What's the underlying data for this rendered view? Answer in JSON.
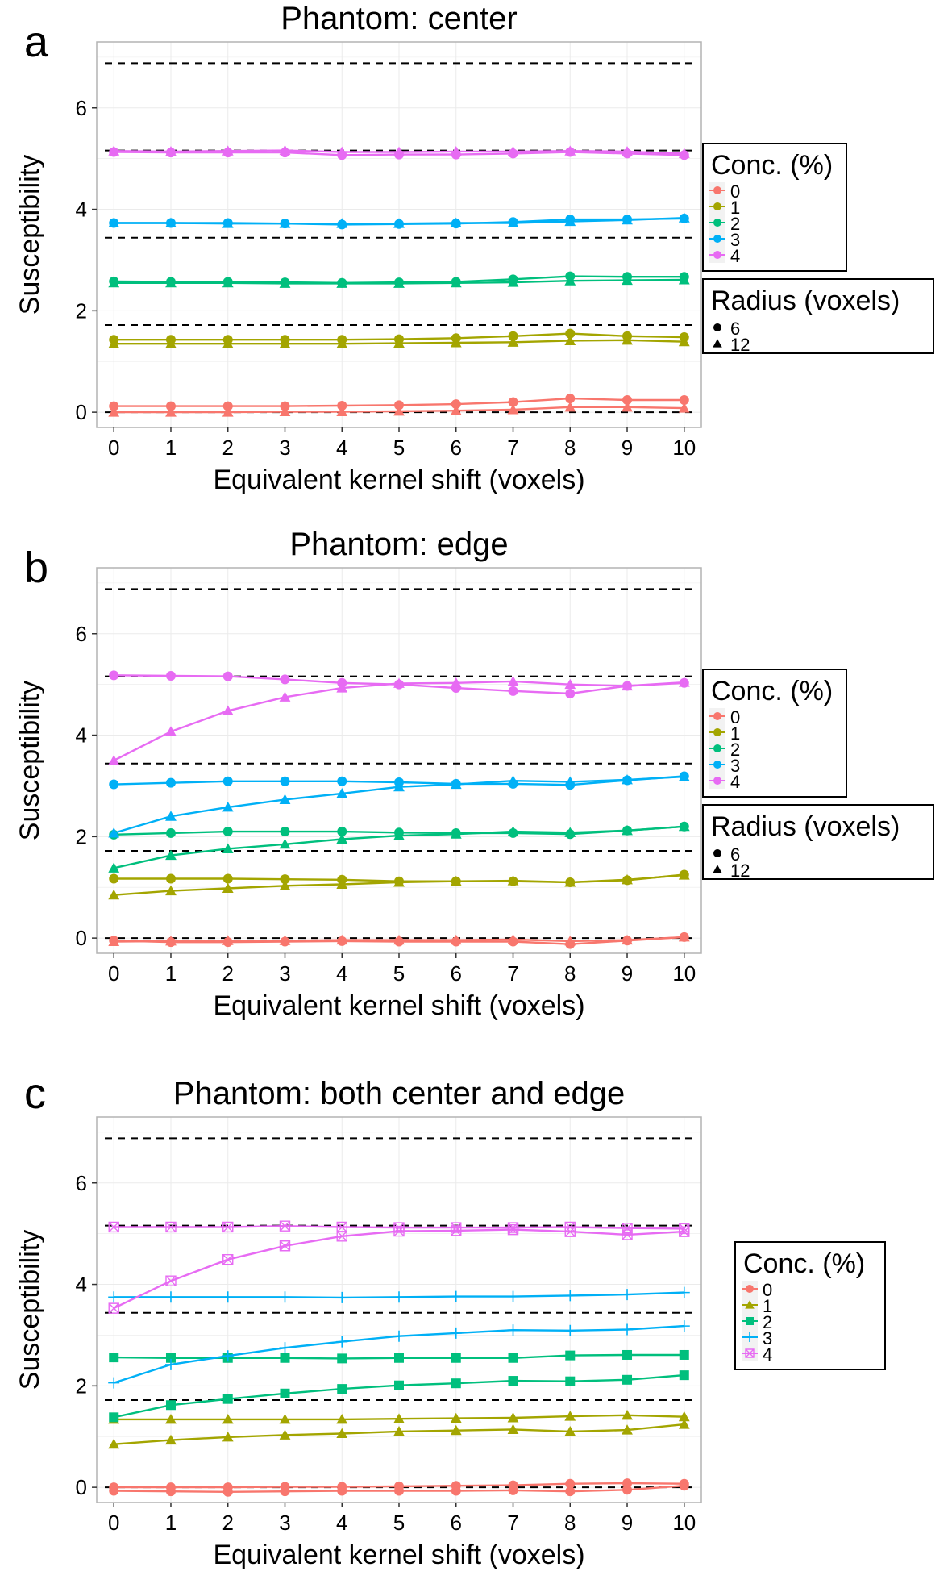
{
  "figure": {
    "panel_letters": [
      "a",
      "b",
      "c"
    ]
  },
  "colors": {
    "series": [
      "#F8766D",
      "#A3A500",
      "#00BF7D",
      "#00B0F6",
      "#E76BF3"
    ],
    "reference_line": "#000000",
    "grid": "#ebebeb",
    "panel_border": "#b3b3b3",
    "axis_text": "#000000"
  },
  "reference_levels": [
    0,
    1.72,
    3.44,
    5.16,
    6.88
  ],
  "chart_data": [
    {
      "type": "line",
      "panel": "a",
      "title": "Phantom: center",
      "xlabel": "Equivalent kernel shift (voxels)",
      "ylabel": "Susceptibility",
      "x": [
        0,
        1,
        2,
        3,
        4,
        5,
        6,
        7,
        8,
        9,
        10
      ],
      "xticks": [
        "0",
        "1",
        "2",
        "3",
        "4",
        "5",
        "6",
        "7",
        "8",
        "9",
        "10"
      ],
      "yticks": [
        "0",
        "2",
        "4",
        "6"
      ],
      "xlim": [
        -0.3,
        10.3
      ],
      "ylim": [
        -0.3,
        7.3
      ],
      "legend_conc": {
        "title": "Conc. (%)",
        "entries": [
          "0",
          "1",
          "2",
          "3",
          "4"
        ]
      },
      "legend_radius": {
        "title": "Radius (voxels)",
        "entries": [
          "6",
          "12"
        ]
      },
      "series": [
        {
          "name": "0",
          "radius": "6",
          "shape": "circle",
          "values": [
            0.12,
            0.12,
            0.12,
            0.12,
            0.13,
            0.14,
            0.16,
            0.2,
            0.27,
            0.24,
            0.24
          ]
        },
        {
          "name": "0",
          "radius": "12",
          "shape": "triangle",
          "values": [
            0.0,
            0.0,
            0.0,
            0.01,
            0.01,
            0.02,
            0.03,
            0.05,
            0.1,
            0.1,
            0.08
          ]
        },
        {
          "name": "1",
          "radius": "6",
          "shape": "circle",
          "values": [
            1.43,
            1.43,
            1.43,
            1.43,
            1.43,
            1.44,
            1.46,
            1.5,
            1.55,
            1.5,
            1.48
          ]
        },
        {
          "name": "1",
          "radius": "12",
          "shape": "triangle",
          "values": [
            1.35,
            1.35,
            1.35,
            1.35,
            1.35,
            1.36,
            1.37,
            1.38,
            1.41,
            1.42,
            1.39
          ]
        },
        {
          "name": "2",
          "radius": "6",
          "shape": "circle",
          "values": [
            2.58,
            2.57,
            2.57,
            2.56,
            2.55,
            2.56,
            2.57,
            2.62,
            2.68,
            2.67,
            2.67
          ]
        },
        {
          "name": "2",
          "radius": "12",
          "shape": "triangle",
          "values": [
            2.55,
            2.55,
            2.55,
            2.54,
            2.54,
            2.54,
            2.55,
            2.56,
            2.59,
            2.6,
            2.61
          ]
        },
        {
          "name": "3",
          "radius": "6",
          "shape": "circle",
          "values": [
            3.73,
            3.73,
            3.73,
            3.72,
            3.7,
            3.71,
            3.72,
            3.75,
            3.8,
            3.8,
            3.82
          ]
        },
        {
          "name": "3",
          "radius": "12",
          "shape": "triangle",
          "values": [
            3.73,
            3.73,
            3.72,
            3.72,
            3.72,
            3.72,
            3.73,
            3.73,
            3.76,
            3.79,
            3.83
          ]
        },
        {
          "name": "4",
          "radius": "6",
          "shape": "circle",
          "values": [
            5.13,
            5.12,
            5.12,
            5.12,
            5.07,
            5.08,
            5.08,
            5.1,
            5.13,
            5.1,
            5.07
          ]
        },
        {
          "name": "4",
          "radius": "12",
          "shape": "triangle",
          "values": [
            5.15,
            5.14,
            5.15,
            5.16,
            5.13,
            5.13,
            5.14,
            5.14,
            5.15,
            5.14,
            5.1
          ]
        }
      ]
    },
    {
      "type": "line",
      "panel": "b",
      "title": "Phantom: edge",
      "xlabel": "Equivalent kernel shift (voxels)",
      "ylabel": "Susceptibility",
      "x": [
        0,
        1,
        2,
        3,
        4,
        5,
        6,
        7,
        8,
        9,
        10
      ],
      "xticks": [
        "0",
        "1",
        "2",
        "3",
        "4",
        "5",
        "6",
        "7",
        "8",
        "9",
        "10"
      ],
      "yticks": [
        "0",
        "2",
        "4",
        "6"
      ],
      "xlim": [
        -0.3,
        10.3
      ],
      "ylim": [
        -0.3,
        7.3
      ],
      "legend_conc": {
        "title": "Conc. (%)",
        "entries": [
          "0",
          "1",
          "2",
          "3",
          "4"
        ]
      },
      "legend_radius": {
        "title": "Radius (voxels)",
        "entries": [
          "6",
          "12"
        ]
      },
      "series": [
        {
          "name": "0",
          "radius": "6",
          "shape": "circle",
          "values": [
            -0.05,
            -0.08,
            -0.08,
            -0.07,
            -0.06,
            -0.07,
            -0.07,
            -0.07,
            -0.12,
            -0.05,
            0.02
          ]
        },
        {
          "name": "0",
          "radius": "12",
          "shape": "triangle",
          "values": [
            -0.07,
            -0.06,
            -0.05,
            -0.05,
            -0.04,
            -0.04,
            -0.04,
            -0.03,
            -0.06,
            -0.04,
            0.02
          ]
        },
        {
          "name": "1",
          "radius": "6",
          "shape": "circle",
          "values": [
            1.17,
            1.17,
            1.17,
            1.16,
            1.15,
            1.12,
            1.12,
            1.12,
            1.1,
            1.14,
            1.25
          ]
        },
        {
          "name": "1",
          "radius": "12",
          "shape": "triangle",
          "values": [
            0.85,
            0.93,
            0.98,
            1.03,
            1.06,
            1.1,
            1.12,
            1.13,
            1.1,
            1.15,
            1.24
          ]
        },
        {
          "name": "2",
          "radius": "6",
          "shape": "circle",
          "values": [
            2.04,
            2.07,
            2.1,
            2.1,
            2.1,
            2.08,
            2.07,
            2.07,
            2.05,
            2.12,
            2.2
          ]
        },
        {
          "name": "2",
          "radius": "12",
          "shape": "triangle",
          "values": [
            1.38,
            1.63,
            1.76,
            1.85,
            1.95,
            2.02,
            2.05,
            2.1,
            2.08,
            2.12,
            2.2
          ]
        },
        {
          "name": "3",
          "radius": "6",
          "shape": "circle",
          "values": [
            3.03,
            3.06,
            3.09,
            3.09,
            3.09,
            3.07,
            3.04,
            3.04,
            3.02,
            3.11,
            3.19
          ]
        },
        {
          "name": "3",
          "radius": "12",
          "shape": "triangle",
          "values": [
            2.07,
            2.4,
            2.58,
            2.73,
            2.85,
            2.98,
            3.03,
            3.1,
            3.08,
            3.12,
            3.18
          ]
        },
        {
          "name": "4",
          "radius": "6",
          "shape": "circle",
          "values": [
            5.18,
            5.17,
            5.16,
            5.1,
            5.03,
            5.0,
            4.93,
            4.87,
            4.82,
            4.97,
            5.03
          ]
        },
        {
          "name": "4",
          "radius": "12",
          "shape": "triangle",
          "values": [
            3.5,
            4.07,
            4.48,
            4.75,
            4.93,
            5.02,
            5.03,
            5.06,
            5.0,
            4.97,
            5.04
          ]
        }
      ]
    },
    {
      "type": "line",
      "panel": "c",
      "title": "Phantom: both center and edge",
      "xlabel": "Equivalent kernel shift (voxels)",
      "ylabel": "Susceptibility",
      "x": [
        0,
        1,
        2,
        3,
        4,
        5,
        6,
        7,
        8,
        9,
        10
      ],
      "xticks": [
        "0",
        "1",
        "2",
        "3",
        "4",
        "5",
        "6",
        "7",
        "8",
        "9",
        "10"
      ],
      "yticks": [
        "0",
        "2",
        "4",
        "6"
      ],
      "xlim": [
        -0.3,
        10.3
      ],
      "ylim": [
        -0.3,
        7.3
      ],
      "legend_conc": {
        "title": "Conc. (%)",
        "entries": [
          "0",
          "1",
          "2",
          "3",
          "4"
        ]
      },
      "series": [
        {
          "name": "0",
          "shape": "circle",
          "values": [
            0.0,
            0.0,
            0.0,
            0.01,
            0.01,
            0.02,
            0.03,
            0.04,
            0.07,
            0.08,
            0.07
          ]
        },
        {
          "name": "0",
          "shape": "circle",
          "values": [
            -0.07,
            -0.08,
            -0.09,
            -0.08,
            -0.07,
            -0.07,
            -0.07,
            -0.06,
            -0.08,
            -0.05,
            0.03
          ]
        },
        {
          "name": "1",
          "shape": "triangle",
          "values": [
            1.34,
            1.34,
            1.34,
            1.34,
            1.34,
            1.35,
            1.36,
            1.37,
            1.4,
            1.42,
            1.39
          ]
        },
        {
          "name": "1",
          "shape": "triangle",
          "values": [
            0.85,
            0.93,
            0.99,
            1.03,
            1.06,
            1.1,
            1.12,
            1.14,
            1.1,
            1.13,
            1.24
          ]
        },
        {
          "name": "2",
          "shape": "square",
          "values": [
            2.56,
            2.55,
            2.55,
            2.55,
            2.54,
            2.55,
            2.55,
            2.55,
            2.6,
            2.61,
            2.61
          ]
        },
        {
          "name": "2",
          "shape": "square",
          "values": [
            1.38,
            1.62,
            1.74,
            1.85,
            1.94,
            2.01,
            2.05,
            2.1,
            2.09,
            2.12,
            2.21
          ]
        },
        {
          "name": "3",
          "shape": "cross",
          "values": [
            3.75,
            3.75,
            3.75,
            3.75,
            3.74,
            3.75,
            3.76,
            3.76,
            3.78,
            3.8,
            3.84
          ]
        },
        {
          "name": "3",
          "shape": "cross",
          "values": [
            2.06,
            2.42,
            2.59,
            2.75,
            2.87,
            2.98,
            3.04,
            3.1,
            3.09,
            3.11,
            3.18
          ]
        },
        {
          "name": "4",
          "shape": "square-cross",
          "values": [
            5.13,
            5.13,
            5.13,
            5.15,
            5.13,
            5.12,
            5.12,
            5.12,
            5.13,
            5.11,
            5.1
          ]
        },
        {
          "name": "4",
          "shape": "square-cross",
          "values": [
            3.53,
            4.07,
            4.49,
            4.76,
            4.95,
            5.05,
            5.06,
            5.08,
            5.04,
            4.98,
            5.04
          ]
        }
      ]
    }
  ]
}
